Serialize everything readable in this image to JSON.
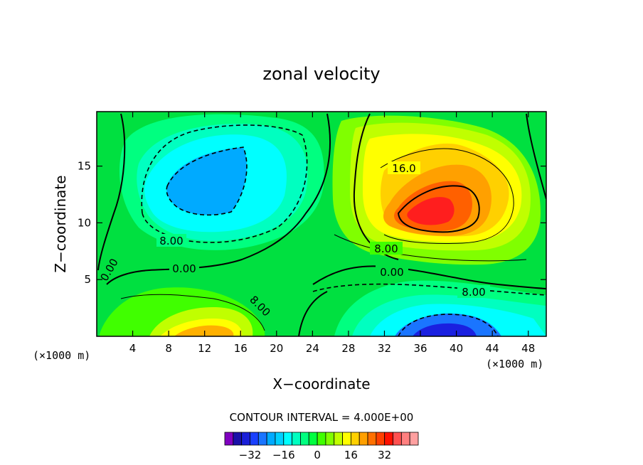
{
  "chart_data": {
    "type": "contour",
    "title": "zonal velocity",
    "xlabel": "X−coordinate",
    "ylabel": "Z−coordinate",
    "x_unit_label": "(×1000 m)",
    "x_unit_label_left": "(×1000 m)",
    "xlim": [
      0,
      50
    ],
    "ylim": [
      0,
      19.8
    ],
    "x_ticks": [
      "4",
      "8",
      "12",
      "16",
      "20",
      "24",
      "28",
      "32",
      "36",
      "40",
      "44",
      "48"
    ],
    "y_ticks": [
      "5",
      "10",
      "15"
    ],
    "contour_interval_text": "CONTOUR INTERVAL = 4.000E+00",
    "contour_labels": [
      "16.0",
      "8.00",
      "0.00",
      "0.00",
      "8.00",
      "8.00",
      "0.00",
      "8.00"
    ],
    "colorbar": {
      "colors": [
        "#8000c0",
        "#1a10a8",
        "#1a1fd8",
        "#1a40ff",
        "#1a75ff",
        "#00aaff",
        "#00d0ff",
        "#00ffff",
        "#00ffc0",
        "#00ff80",
        "#00ff40",
        "#40ff00",
        "#80ff00",
        "#c0ff00",
        "#ffff00",
        "#ffd000",
        "#ffa000",
        "#ff7000",
        "#ff4000",
        "#ff1000",
        "#ff5050",
        "#ff8080",
        "#ffa0a0"
      ],
      "tick_labels": [
        "−32",
        "−16",
        "0",
        "16",
        "32"
      ]
    },
    "features": [
      {
        "kind": "max",
        "x": 37,
        "z": 11,
        "value": 36,
        "color": "#ff1e1e"
      },
      {
        "kind": "min",
        "x": 12.5,
        "z": 14,
        "value": -16,
        "color": "#00aaff"
      },
      {
        "kind": "min",
        "x": 38,
        "z": 0.5,
        "value": -28,
        "color": "#1a40ff"
      },
      {
        "kind": "max",
        "x": 13,
        "z": 0.5,
        "value": 20,
        "color": "#ffb000"
      }
    ]
  }
}
